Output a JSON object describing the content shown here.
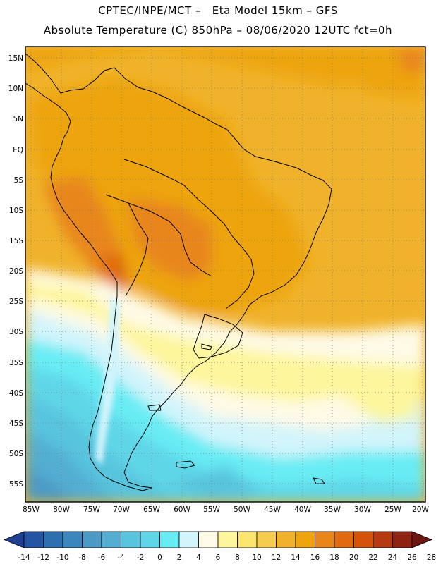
{
  "header": {
    "line1": "CPTEC/INPE/MCT –   Eta Model 15km – GFS",
    "line2": "Absolute Temperature (C) 850hPa – 08/06/2020 12UTC fct=0h"
  },
  "map": {
    "lat_labels": [
      "15N",
      "10N",
      "5N",
      "EQ",
      "5S",
      "10S",
      "15S",
      "20S",
      "25S",
      "30S",
      "35S",
      "40S",
      "45S",
      "50S",
      "55S"
    ],
    "lon_labels": [
      "85W",
      "80W",
      "75W",
      "70W",
      "65W",
      "60W",
      "55W",
      "50W",
      "45W",
      "40W",
      "35W",
      "30W",
      "25W",
      "20W"
    ]
  },
  "legend": {
    "labels": [
      "-14",
      "-12",
      "-10",
      "-8",
      "-6",
      "-4",
      "-2",
      "0",
      "2",
      "4",
      "6",
      "8",
      "10",
      "12",
      "14",
      "16",
      "18",
      "20",
      "22",
      "24",
      "26",
      "28"
    ],
    "colors": [
      "#1f3f93",
      "#2455a3",
      "#2c70b0",
      "#3a86bd",
      "#4b9ac6",
      "#53aed1",
      "#59c4de",
      "#5fd6e8",
      "#68ecf4",
      "#d2f4fb",
      "#fefae6",
      "#fdf69c",
      "#fbe56f",
      "#f6cc4f",
      "#f0b22a",
      "#eda40c",
      "#e8861a",
      "#e06a10",
      "#d5520a",
      "#b53a10",
      "#8e2312",
      "#6d1710"
    ]
  }
}
